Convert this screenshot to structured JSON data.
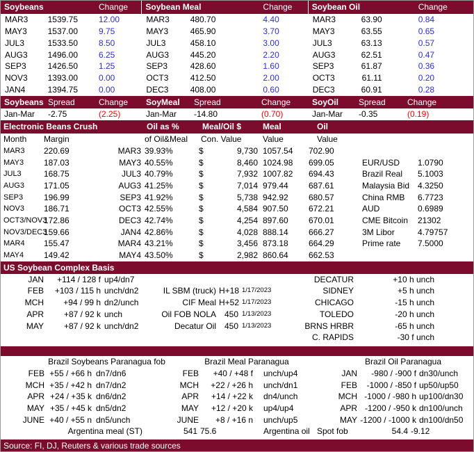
{
  "theme": {
    "maroon": "#7B0C2E",
    "change_up_blue": "#2E2EC8",
    "change_down_red": "#FB0007",
    "text": "#000000",
    "background": "#FFFFFF"
  },
  "futures": {
    "tables": [
      {
        "title": "Soybeans",
        "change_label": "Change",
        "rows": [
          {
            "m": "MAR3",
            "v": "1539.75",
            "c": "12.00"
          },
          {
            "m": "MAY3",
            "v": "1537.00",
            "c": "9.75"
          },
          {
            "m": "JUL3",
            "v": "1533.50",
            "c": "8.50"
          },
          {
            "m": "AUG3",
            "v": "1496.00",
            "c": "6.25"
          },
          {
            "m": "SEP3",
            "v": "1426.50",
            "c": "1.25"
          },
          {
            "m": "NOV3",
            "v": "1393.00",
            "c": "0.00"
          },
          {
            "m": "JAN4",
            "v": "1394.75",
            "c": "0.00"
          }
        ]
      },
      {
        "title": "Soybean Meal",
        "change_label": "Change",
        "rows": [
          {
            "m": "MAR3",
            "v": "480.70",
            "c": "4.40"
          },
          {
            "m": "MAY3",
            "v": "465.90",
            "c": "3.70"
          },
          {
            "m": "JUL3",
            "v": "458.10",
            "c": "3.00"
          },
          {
            "m": "AUG3",
            "v": "445.20",
            "c": "2.20"
          },
          {
            "m": "SEP3",
            "v": "428.60",
            "c": "1.60"
          },
          {
            "m": "OCT3",
            "v": "412.50",
            "c": "2.00"
          },
          {
            "m": "DEC3",
            "v": "408.00",
            "c": "0.60"
          }
        ]
      },
      {
        "title": "Soybean Oil",
        "change_label": "Change",
        "rows": [
          {
            "m": "MAR3",
            "v": "63.90",
            "c": "0.84"
          },
          {
            "m": "MAY3",
            "v": "63.55",
            "c": "0.65"
          },
          {
            "m": "JUL3",
            "v": "63.13",
            "c": "0.57"
          },
          {
            "m": "AUG3",
            "v": "62.51",
            "c": "0.47"
          },
          {
            "m": "SEP3",
            "v": "61.87",
            "c": "0.36"
          },
          {
            "m": "OCT3",
            "v": "61.11",
            "c": "0.20"
          },
          {
            "m": "DEC3",
            "v": "60.91",
            "c": "0.28"
          }
        ]
      }
    ]
  },
  "spreads": {
    "groups": [
      {
        "title": "Soybeans",
        "spread_label": "Spread",
        "change_label": "Change",
        "month": "Jan-Mar",
        "spread": "-2.75",
        "change": "(2.25)"
      },
      {
        "title": "SoyMeal",
        "spread_label": "Spread",
        "change_label": "Change",
        "month": "Jan-Mar",
        "spread": "-14.80",
        "change": "(0.70)"
      },
      {
        "title": "SoyOil",
        "spread_label": "Spread",
        "change_label": "Change",
        "month": "Jan-Mar",
        "spread": "-0.35",
        "change": "(0.19)"
      }
    ]
  },
  "crush": {
    "title": "Electronic Beans Crush",
    "headers": {
      "oil_pct": "Oil as %",
      "meal_oil_usd": "Meal/Oil $",
      "meal": "Meal",
      "oil": "Oil"
    },
    "subheaders": {
      "month": "Month",
      "margin": "Margin",
      "of_oil_meal": "of Oil&Meal",
      "con_value": "Con. Value",
      "meal_value": "Value",
      "oil_value": "Value"
    },
    "rows": [
      {
        "m": "MAR3",
        "mg": "220.69",
        "pm": "MAR3",
        "p": "39.93%",
        "d": "$",
        "cv": "9,730",
        "ml": "1057.54",
        "ol": "702.90",
        "rl": "",
        "rv": ""
      },
      {
        "m": "MAY3",
        "mg": "187.03",
        "pm": "MAY3",
        "p": "40.55%",
        "d": "$",
        "cv": "8,460",
        "ml": "1024.98",
        "ol": "699.05",
        "rl": "EUR/USD",
        "rv": "1.0790"
      },
      {
        "m": "JUL3",
        "mg": "168.75",
        "pm": "JUL3",
        "p": "40.79%",
        "d": "$",
        "cv": "7,932",
        "ml": "1007.82",
        "ol": "694.43",
        "rl": "Brazil Real",
        "rv": "5.1003"
      },
      {
        "m": "AUG3",
        "mg": "171.05",
        "pm": "AUG3",
        "p": "41.25%",
        "d": "$",
        "cv": "7,014",
        "ml": "979.44",
        "ol": "687.61",
        "rl": "Malaysia Bid",
        "rv": "4.3250"
      },
      {
        "m": "SEP3",
        "mg": "196.99",
        "pm": "SEP3",
        "p": "41.92%",
        "d": "$",
        "cv": "5,738",
        "ml": "942.92",
        "ol": "680.57",
        "rl": "China RMB",
        "rv": "6.7723"
      },
      {
        "m": "NOV3",
        "mg": "186.71",
        "pm": "OCT3",
        "p": "42.55%",
        "d": "$",
        "cv": "4,584",
        "ml": "907.50",
        "ol": "672.21",
        "rl": "AUD",
        "rv": "0.6989"
      },
      {
        "m": "OCT3/NOV3",
        "mg": "172.86",
        "pm": "DEC3",
        "p": "42.74%",
        "d": "$",
        "cv": "4,254",
        "ml": "897.60",
        "ol": "670.01",
        "rl": "CME Bitcoin",
        "rv": "21302"
      },
      {
        "m": "NOV3/DEC3",
        "mg": "159.66",
        "pm": "JAN4",
        "p": "42.86%",
        "d": "$",
        "cv": "4,028",
        "ml": "888.14",
        "ol": "666.27",
        "rl": "3M Libor",
        "rv": "4.79757"
      },
      {
        "m": "MAR4",
        "mg": "155.47",
        "pm": "MAR4",
        "p": "43.21%",
        "d": "$",
        "cv": "3,456",
        "ml": "873.18",
        "ol": "664.29",
        "rl": "Prime rate",
        "rv": "7.5000"
      },
      {
        "m": "MAY4",
        "mg": "149.42",
        "pm": "MAY4",
        "p": "43.50%",
        "d": "$",
        "cv": "2,982",
        "ml": "860.64",
        "ol": "662.53",
        "rl": "",
        "rv": ""
      }
    ]
  },
  "basis": {
    "title": "US Soybean Complex Basis",
    "rows": [
      {
        "m": "JAN",
        "ba": "+114 / 128 f",
        "chg": "up4/dn7",
        "lbl": "",
        "val": "",
        "date": "",
        "city": "DECATUR",
        "cb": "+10 h  unch"
      },
      {
        "m": "FEB",
        "ba": "+103 / 115 h",
        "chg": "unch/dn2",
        "lbl": "IL SBM (truck)",
        "val": "H+18",
        "date": "1/17/2023",
        "city": "SIDNEY",
        "cb": "+5 h  unch"
      },
      {
        "m": "MCH",
        "ba": "+94 / 99 h",
        "chg": "dn2/unch",
        "lbl": "CIF Meal",
        "val": "H+52",
        "date": "1/17/2023",
        "city": "CHICAGO",
        "cb": "-15 h  unch"
      },
      {
        "m": "APR",
        "ba": "+87 / 92 k",
        "chg": "unch",
        "lbl": "Oil FOB NOLA",
        "val": "450",
        "date": "1/13/2023",
        "city": "TOLEDO",
        "cb": "-20 h  unch"
      },
      {
        "m": "MAY",
        "ba": "+87 / 92 k",
        "chg": "unch/dn2",
        "lbl": "Decatur Oil",
        "val": "450",
        "date": "1/13/2023",
        "city": "BRNS HRBR",
        "cb": "-65 h  unch"
      },
      {
        "m": "",
        "ba": "",
        "chg": "",
        "lbl": "",
        "val": "",
        "date": "",
        "city": "C. RAPIDS",
        "cb": "-30 f  unch"
      }
    ]
  },
  "brazil": {
    "soybeans_title": "Brazil Soybeans Paranagua fob",
    "meal_title": "Brazil Meal Paranagua",
    "oil_title": "Brazil Oil Paranagua",
    "rows": [
      {
        "g1": {
          "m": "FEB",
          "ba": "+55 / +66 h",
          "c": "dn7/dn6"
        },
        "g2": {
          "m": "FEB",
          "ba": "+40 / +48 f",
          "c": "unch/up4"
        },
        "g3": {
          "m": "JAN",
          "ba": "-980 / -900 f",
          "c": "dn30/unch"
        }
      },
      {
        "g1": {
          "m": "MCH",
          "ba": "+35 / +42 h",
          "c": "dn7/dn2"
        },
        "g2": {
          "m": "MCH",
          "ba": "+22 / +26 h",
          "c": "unch/dn1"
        },
        "g3": {
          "m": "FEB",
          "ba": "-1000 / -850 f",
          "c": "up50/up50"
        }
      },
      {
        "g1": {
          "m": "APR",
          "ba": "+24 / +35 k",
          "c": "dn6/dn2"
        },
        "g2": {
          "m": "APR",
          "ba": "+14 / +22 k",
          "c": "dn4/unch"
        },
        "g3": {
          "m": "MCH",
          "ba": "-1000 / -980 h",
          "c": "up100/dn30"
        }
      },
      {
        "g1": {
          "m": "MAY",
          "ba": "+35 / +45 k",
          "c": "dn5/dn2"
        },
        "g2": {
          "m": "MAY",
          "ba": "+12 / +20 k",
          "c": "up4/up4"
        },
        "g3": {
          "m": "APR",
          "ba": "-1200 / -950 k",
          "c": "dn100/unch"
        }
      },
      {
        "g1": {
          "m": "JUNE",
          "ba": "+40 / +55 n",
          "c": "dn5/unch"
        },
        "g2": {
          "m": "JUNE",
          "ba": "+8 / +16 n",
          "c": "unch/up5"
        },
        "g3": {
          "m": "MAY",
          "ba": "-1200 / -1000 k",
          "c": "dn100/dn50"
        }
      }
    ],
    "footer": {
      "argentina_meal": "Argentina meal (ST)",
      "meal_val1": "541",
      "meal_val2": "75.6",
      "argentina_oil": "Argentina oil",
      "spot_label": "Spot fob",
      "spot_val": "54.4",
      "spot_chg": "-9.12"
    }
  },
  "footer": {
    "source": "Source: FI, DJ, Reuters & various trade sources"
  }
}
